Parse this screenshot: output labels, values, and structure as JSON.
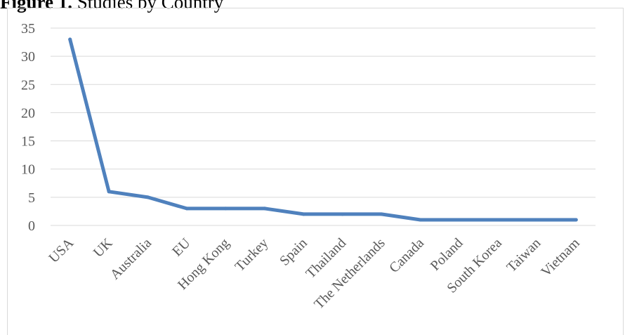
{
  "figure": {
    "label": "Figure 1.",
    "caption": "Studies by Country"
  },
  "chart_data": {
    "type": "line",
    "title": "",
    "xlabel": "",
    "ylabel": "",
    "categories": [
      "USA",
      "UK",
      "Australia",
      "EU",
      "Hong Kong",
      "Turkey",
      "Spain",
      "Thailand",
      "The Netherlands",
      "Canada",
      "Poland",
      "South Korea",
      "Taiwan",
      "Vietnam"
    ],
    "series": [
      {
        "values": [
          33,
          6,
          5,
          3,
          3,
          3,
          2,
          2,
          2,
          1,
          1,
          1,
          1,
          1
        ]
      }
    ],
    "ylim": [
      0,
      35
    ],
    "yticks": [
      0,
      5,
      10,
      15,
      20,
      25,
      30,
      35
    ],
    "grid": "horizontal",
    "legend": "none",
    "colors": {
      "line": "#4f81bd",
      "grid": "#d9d9d9",
      "tick_text": "#595959"
    }
  }
}
